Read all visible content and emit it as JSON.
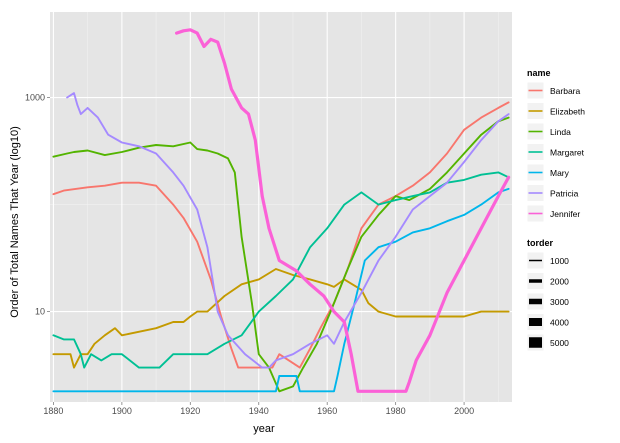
{
  "chart_data": {
    "type": "line",
    "title": "",
    "xlabel": "year",
    "ylabel": "Order of Total Names That Year (log10)",
    "xlim": [
      1879,
      2014
    ],
    "x_ticks": [
      1880,
      1900,
      1920,
      1940,
      1960,
      1980,
      2000
    ],
    "x_tick_labels": [
      "1880",
      "1900",
      "1920",
      "1940",
      "1960",
      "1980",
      "2000"
    ],
    "y_scale": "log10",
    "ylim": [
      1.43,
      6300
    ],
    "y_ticks": [
      10,
      1000
    ],
    "y_tick_labels": [
      "10",
      "1000"
    ],
    "grid": true,
    "legend_position": "right",
    "color_legend_title": "name",
    "size_legend_title": "torder",
    "size_legend_labels": [
      "1000",
      "2000",
      "3000",
      "4000",
      "5000"
    ],
    "series": [
      {
        "name": "Barbara",
        "color": "#F8766D",
        "values": [
          [
            1880,
            125
          ],
          [
            1883,
            135
          ],
          [
            1890,
            145
          ],
          [
            1895,
            150
          ],
          [
            1900,
            160
          ],
          [
            1905,
            160
          ],
          [
            1910,
            150
          ],
          [
            1915,
            100
          ],
          [
            1918,
            75
          ],
          [
            1922,
            45
          ],
          [
            1926,
            20
          ],
          [
            1929,
            9
          ],
          [
            1932,
            4.5
          ],
          [
            1934,
            3
          ],
          [
            1944,
            3
          ],
          [
            1946,
            4
          ],
          [
            1952,
            3
          ],
          [
            1955,
            4.5
          ],
          [
            1958,
            7
          ],
          [
            1962,
            12
          ],
          [
            1966,
            25
          ],
          [
            1970,
            60
          ],
          [
            1975,
            100
          ],
          [
            1980,
            120
          ],
          [
            1985,
            150
          ],
          [
            1990,
            200
          ],
          [
            1995,
            300
          ],
          [
            2000,
            500
          ],
          [
            2005,
            650
          ],
          [
            2010,
            800
          ],
          [
            2013,
            900
          ]
        ]
      },
      {
        "name": "Elizabeth",
        "color": "#C49A00",
        "values": [
          [
            1880,
            4
          ],
          [
            1885,
            4
          ],
          [
            1886,
            3
          ],
          [
            1888,
            4
          ],
          [
            1890,
            4
          ],
          [
            1892,
            5
          ],
          [
            1895,
            6
          ],
          [
            1898,
            7
          ],
          [
            1900,
            6
          ],
          [
            1910,
            7
          ],
          [
            1915,
            8
          ],
          [
            1918,
            8
          ],
          [
            1920,
            9
          ],
          [
            1922,
            10
          ],
          [
            1925,
            10
          ],
          [
            1930,
            14
          ],
          [
            1935,
            18
          ],
          [
            1940,
            20
          ],
          [
            1945,
            25
          ],
          [
            1950,
            22
          ],
          [
            1955,
            20
          ],
          [
            1960,
            18
          ],
          [
            1962,
            17
          ],
          [
            1965,
            20
          ],
          [
            1970,
            16
          ],
          [
            1972,
            12
          ],
          [
            1975,
            10
          ],
          [
            1980,
            9
          ],
          [
            1985,
            9
          ],
          [
            1990,
            9
          ],
          [
            1995,
            9
          ],
          [
            2000,
            9
          ],
          [
            2005,
            10
          ],
          [
            2010,
            10
          ],
          [
            2013,
            10
          ]
        ]
      },
      {
        "name": "Linda",
        "color": "#53B400",
        "values": [
          [
            1880,
            280
          ],
          [
            1884,
            300
          ],
          [
            1886,
            310
          ],
          [
            1890,
            320
          ],
          [
            1895,
            290
          ],
          [
            1900,
            310
          ],
          [
            1905,
            340
          ],
          [
            1910,
            360
          ],
          [
            1915,
            350
          ],
          [
            1920,
            380
          ],
          [
            1922,
            330
          ],
          [
            1925,
            320
          ],
          [
            1928,
            300
          ],
          [
            1931,
            270
          ],
          [
            1933,
            200
          ],
          [
            1935,
            50
          ],
          [
            1938,
            12
          ],
          [
            1940,
            4
          ],
          [
            1943,
            3
          ],
          [
            1946,
            1.8
          ],
          [
            1950,
            2
          ],
          [
            1953,
            3
          ],
          [
            1957,
            5
          ],
          [
            1961,
            10
          ],
          [
            1966,
            25
          ],
          [
            1970,
            50
          ],
          [
            1975,
            80
          ],
          [
            1980,
            120
          ],
          [
            1984,
            110
          ],
          [
            1990,
            140
          ],
          [
            1995,
            200
          ],
          [
            2000,
            300
          ],
          [
            2005,
            450
          ],
          [
            2010,
            600
          ],
          [
            2013,
            650
          ]
        ]
      },
      {
        "name": "Margaret",
        "color": "#00C094",
        "values": [
          [
            1880,
            6
          ],
          [
            1883,
            5.5
          ],
          [
            1886,
            5.5
          ],
          [
            1888,
            4
          ],
          [
            1889,
            3
          ],
          [
            1891,
            4
          ],
          [
            1894,
            3.5
          ],
          [
            1897,
            4
          ],
          [
            1900,
            4
          ],
          [
            1905,
            3
          ],
          [
            1911,
            3
          ],
          [
            1915,
            4
          ],
          [
            1920,
            4
          ],
          [
            1925,
            4
          ],
          [
            1930,
            5
          ],
          [
            1935,
            6
          ],
          [
            1940,
            10
          ],
          [
            1945,
            14
          ],
          [
            1950,
            20
          ],
          [
            1955,
            40
          ],
          [
            1960,
            60
          ],
          [
            1965,
            100
          ],
          [
            1970,
            130
          ],
          [
            1975,
            100
          ],
          [
            1980,
            110
          ],
          [
            1985,
            120
          ],
          [
            1990,
            130
          ],
          [
            1995,
            160
          ],
          [
            2000,
            170
          ],
          [
            2005,
            190
          ],
          [
            2010,
            200
          ],
          [
            2013,
            180
          ]
        ]
      },
      {
        "name": "Mary",
        "color": "#00B6EB",
        "values": [
          [
            1880,
            1.8
          ],
          [
            1890,
            1.8
          ],
          [
            1900,
            1.8
          ],
          [
            1920,
            1.8
          ],
          [
            1945,
            1.8
          ],
          [
            1946,
            2.5
          ],
          [
            1951,
            2.5
          ],
          [
            1952,
            1.8
          ],
          [
            1962,
            1.8
          ],
          [
            1963,
            2.5
          ],
          [
            1965,
            5
          ],
          [
            1968,
            12
          ],
          [
            1971,
            30
          ],
          [
            1975,
            40
          ],
          [
            1980,
            45
          ],
          [
            1985,
            55
          ],
          [
            1990,
            60
          ],
          [
            1995,
            70
          ],
          [
            2000,
            80
          ],
          [
            2005,
            100
          ],
          [
            2010,
            130
          ],
          [
            2013,
            140
          ]
        ]
      },
      {
        "name": "Patricia",
        "color": "#A58AFF",
        "values": [
          [
            1884,
            1000
          ],
          [
            1886,
            1100
          ],
          [
            1887,
            850
          ],
          [
            1888,
            700
          ],
          [
            1890,
            800
          ],
          [
            1893,
            650
          ],
          [
            1896,
            450
          ],
          [
            1900,
            380
          ],
          [
            1905,
            350
          ],
          [
            1910,
            300
          ],
          [
            1915,
            200
          ],
          [
            1918,
            150
          ],
          [
            1922,
            90
          ],
          [
            1925,
            40
          ],
          [
            1928,
            10
          ],
          [
            1931,
            6
          ],
          [
            1936,
            4
          ],
          [
            1941,
            3
          ],
          [
            1943,
            3
          ],
          [
            1945,
            3.5
          ],
          [
            1950,
            4
          ],
          [
            1955,
            5
          ],
          [
            1960,
            6
          ],
          [
            1962,
            5
          ],
          [
            1965,
            8
          ],
          [
            1970,
            15
          ],
          [
            1975,
            30
          ],
          [
            1980,
            50
          ],
          [
            1985,
            90
          ],
          [
            1990,
            120
          ],
          [
            1995,
            160
          ],
          [
            2000,
            250
          ],
          [
            2005,
            400
          ],
          [
            2010,
            600
          ],
          [
            2013,
            700
          ]
        ]
      },
      {
        "name": "Jennifer",
        "color": "#FB61D7",
        "values": [
          [
            1916,
            4000
          ],
          [
            1918,
            4200
          ],
          [
            1920,
            4300
          ],
          [
            1922,
            4000
          ],
          [
            1924,
            3000
          ],
          [
            1926,
            3500
          ],
          [
            1928,
            3300
          ],
          [
            1930,
            2100
          ],
          [
            1932,
            1200
          ],
          [
            1935,
            800
          ],
          [
            1937,
            700
          ],
          [
            1939,
            400
          ],
          [
            1941,
            120
          ],
          [
            1943,
            60
          ],
          [
            1946,
            30
          ],
          [
            1951,
            24
          ],
          [
            1955,
            18
          ],
          [
            1959,
            14
          ],
          [
            1962,
            10
          ],
          [
            1965,
            8
          ],
          [
            1967,
            4
          ],
          [
            1969,
            1.8
          ],
          [
            1972,
            1.8
          ],
          [
            1983,
            1.8
          ],
          [
            1984,
            2.2
          ],
          [
            1986,
            3.5
          ],
          [
            1990,
            6
          ],
          [
            1995,
            15
          ],
          [
            2000,
            30
          ],
          [
            2005,
            60
          ],
          [
            2010,
            120
          ],
          [
            2013,
            180
          ]
        ]
      }
    ]
  }
}
